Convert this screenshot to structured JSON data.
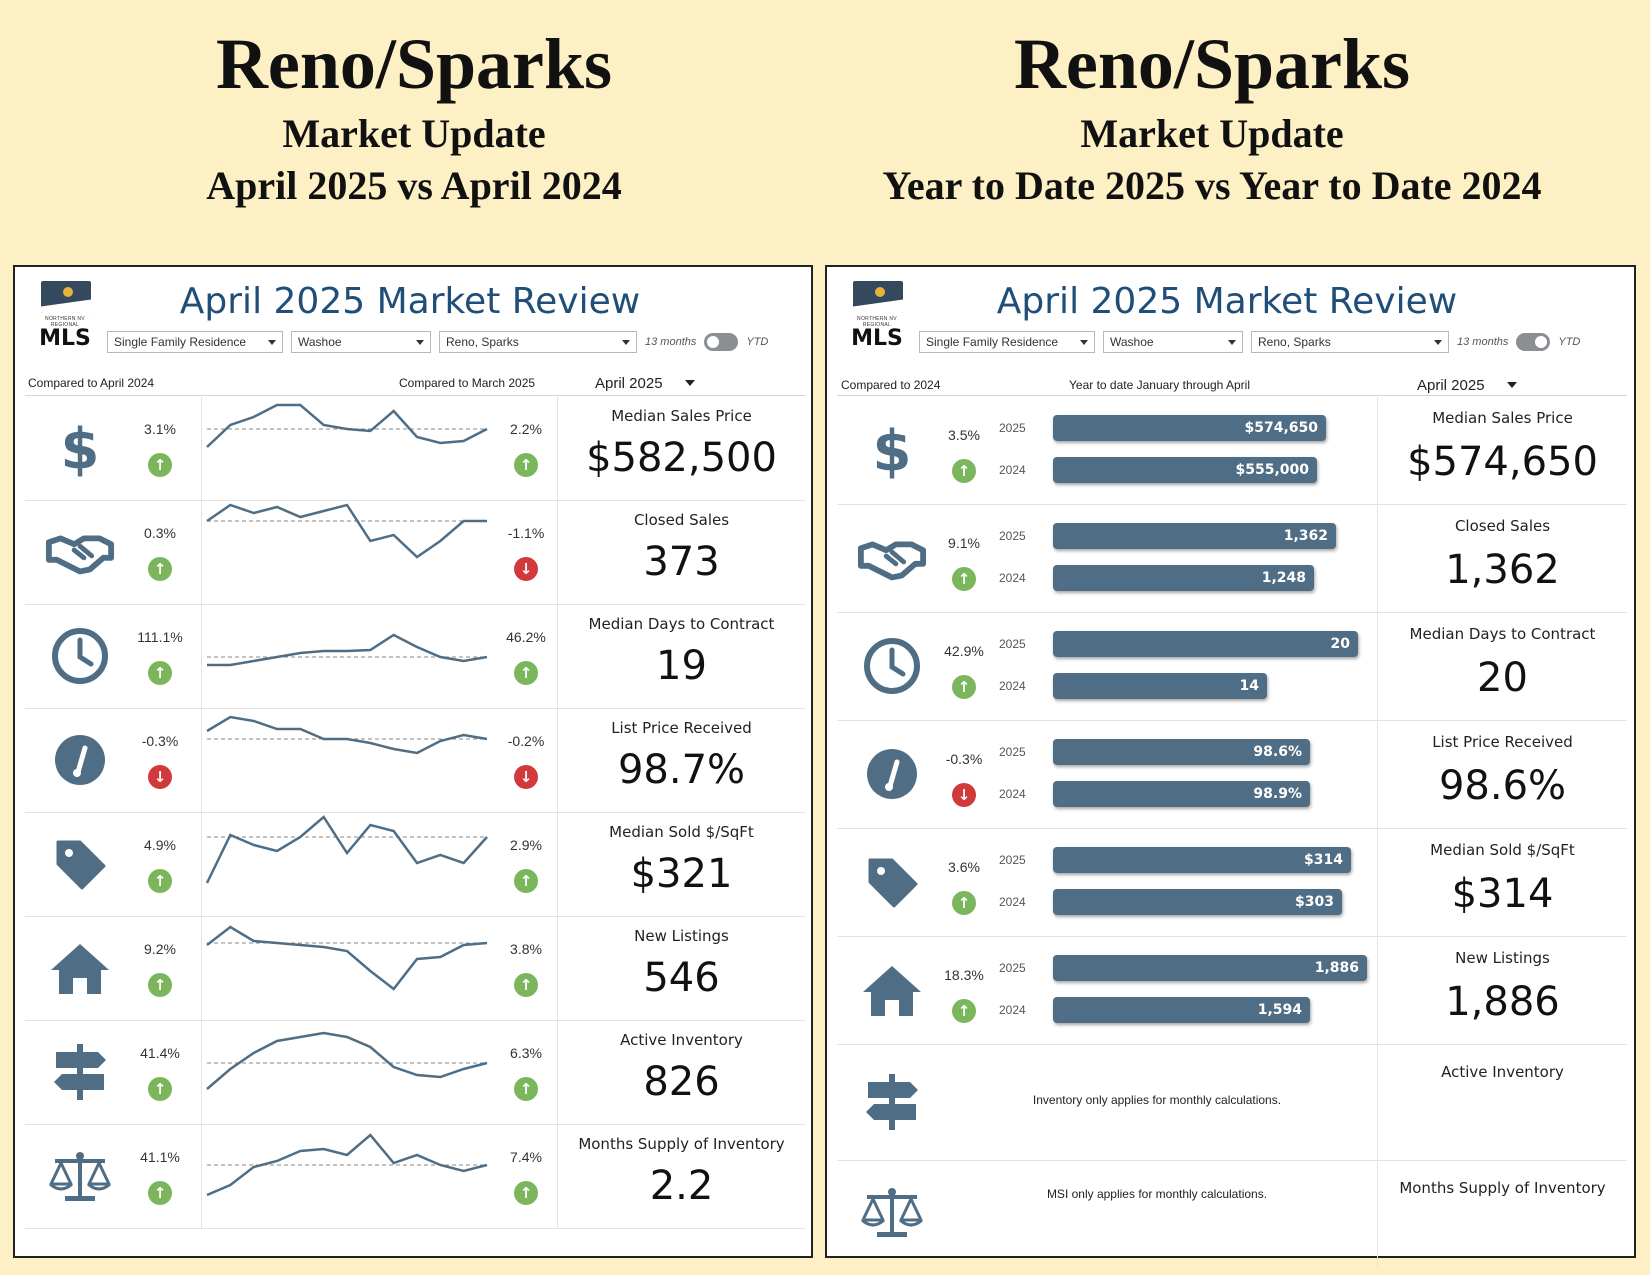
{
  "left_header": {
    "title": "Reno/Sparks",
    "line2": "Market Update",
    "line3": "April 2025 vs April 2024"
  },
  "right_header": {
    "title": "Reno/Sparks",
    "line2": "Market Update",
    "line3": "Year to Date 2025 vs Year to Date 2024"
  },
  "logo": {
    "small": "NORTHERN NV REGIONAL",
    "big": "MLS"
  },
  "colors": {
    "accent": "#1f4e79",
    "icon": "#4f6e85",
    "up": "#7bb65c",
    "down": "#d1393b",
    "bar": "#4f6e85",
    "background": "#fdf0c4"
  },
  "left_panel": {
    "title": "April 2025 Market Review",
    "filters": {
      "property_type": "Single Family Residence",
      "county": "Washoe",
      "city": "Reno, Sparks",
      "toggle_left": "13 months",
      "toggle_right": "YTD",
      "toggle_state": "13 months"
    },
    "compare_left": "Compared to April 2024",
    "compare_right": "Compared to March 2025",
    "period": "April 2025",
    "rows": [
      {
        "icon": "dollar-icon",
        "yoy": "3.1%",
        "yoy_dir": "up",
        "mom": "2.2%",
        "mom_dir": "up",
        "label": "Median Sales Price",
        "value": "$582,500",
        "trend": [
          50,
          72,
          80,
          92,
          92,
          72,
          68,
          66,
          86,
          60,
          54,
          56,
          68
        ]
      },
      {
        "icon": "handshake-icon",
        "yoy": "0.3%",
        "yoy_dir": "up",
        "mom": "-1.1%",
        "mom_dir": "down",
        "label": "Closed Sales",
        "value": "373",
        "trend": [
          80,
          96,
          88,
          94,
          84,
          90,
          96,
          60,
          66,
          44,
          60,
          80,
          80
        ]
      },
      {
        "icon": "clock-icon",
        "yoy": "111.1%",
        "yoy_dir": "up",
        "mom": "46.2%",
        "mom_dir": "up",
        "label": "Median Days to Contract",
        "value": "19",
        "trend": [
          40,
          40,
          44,
          48,
          52,
          54,
          54,
          55,
          70,
          58,
          48,
          44,
          48
        ]
      },
      {
        "icon": "gauge-icon",
        "yoy": "-0.3%",
        "yoy_dir": "down",
        "mom": "-0.2%",
        "mom_dir": "down",
        "label": "List Price Received",
        "value": "98.7%",
        "trend": [
          78,
          92,
          88,
          80,
          80,
          70,
          70,
          66,
          60,
          56,
          68,
          74,
          70
        ]
      },
      {
        "icon": "tag-icon",
        "yoy": "4.9%",
        "yoy_dir": "up",
        "mom": "2.9%",
        "mom_dir": "up",
        "label": "Median Sold $/SqFt",
        "value": "$321",
        "trend": [
          30,
          78,
          68,
          62,
          76,
          96,
          60,
          88,
          82,
          50,
          58,
          50,
          76
        ]
      },
      {
        "icon": "house-icon",
        "yoy": "9.2%",
        "yoy_dir": "up",
        "mom": "3.8%",
        "mom_dir": "up",
        "label": "New Listings",
        "value": "546",
        "trend": [
          72,
          90,
          76,
          74,
          72,
          70,
          66,
          46,
          28,
          58,
          60,
          72,
          74
        ]
      },
      {
        "icon": "signpost-icon",
        "yoy": "41.4%",
        "yoy_dir": "up",
        "mom": "6.3%",
        "mom_dir": "up",
        "label": "Active Inventory",
        "value": "826",
        "trend": [
          32,
          52,
          68,
          80,
          84,
          88,
          84,
          74,
          54,
          46,
          44,
          52,
          58
        ]
      },
      {
        "icon": "scale-icon",
        "yoy": "41.1%",
        "yoy_dir": "up",
        "mom": "7.4%",
        "mom_dir": "up",
        "label": "Months Supply of Inventory",
        "value": "2.2",
        "trend": [
          30,
          40,
          58,
          64,
          74,
          76,
          70,
          90,
          62,
          70,
          60,
          54,
          60
        ]
      }
    ]
  },
  "right_panel": {
    "title": "April 2025 Market Review",
    "filters": {
      "property_type": "Single Family Residence",
      "county": "Washoe",
      "city": "Reno, Sparks",
      "toggle_left": "13 months",
      "toggle_right": "YTD",
      "toggle_state": "YTD"
    },
    "compare_left": "Compared to 2024",
    "compare_middle": "Year to date January through April",
    "period": "April 2025",
    "year_current": "2025",
    "year_prior": "2024",
    "rows": [
      {
        "icon": "dollar-icon",
        "pct": "3.5%",
        "dir": "up",
        "label": "Median Sales Price",
        "value": "$574,650",
        "bar_current": "$574,650",
        "bar_prior": "$555,000",
        "frac_current": 0.87,
        "frac_prior": 0.84
      },
      {
        "icon": "handshake-icon",
        "pct": "9.1%",
        "dir": "up",
        "label": "Closed Sales",
        "value": "1,362",
        "bar_current": "1,362",
        "bar_prior": "1,248",
        "frac_current": 0.9,
        "frac_prior": 0.83
      },
      {
        "icon": "clock-icon",
        "pct": "42.9%",
        "dir": "up",
        "label": "Median Days to Contract",
        "value": "20",
        "bar_current": "20",
        "bar_prior": "14",
        "frac_current": 0.97,
        "frac_prior": 0.68
      },
      {
        "icon": "gauge-icon",
        "pct": "-0.3%",
        "dir": "down",
        "label": "List Price Received",
        "value": "98.6%",
        "bar_current": "98.6%",
        "bar_prior": "98.9%",
        "frac_current": 0.82,
        "frac_prior": 0.82
      },
      {
        "icon": "tag-icon",
        "pct": "3.6%",
        "dir": "up",
        "label": "Median Sold $/SqFt",
        "value": "$314",
        "bar_current": "$314",
        "bar_prior": "$303",
        "frac_current": 0.95,
        "frac_prior": 0.92
      },
      {
        "icon": "house-icon",
        "pct": "18.3%",
        "dir": "up",
        "label": "New Listings",
        "value": "1,886",
        "bar_current": "1,886",
        "bar_prior": "1,594",
        "frac_current": 1.0,
        "frac_prior": 0.82
      }
    ],
    "inventory_row": {
      "icon": "signpost-icon",
      "label": "Active Inventory",
      "note": "Inventory only applies for monthly calculations."
    },
    "msi_row": {
      "icon": "scale-icon",
      "label": "Months Supply of Inventory",
      "note": "MSI only applies for monthly calculations."
    }
  }
}
